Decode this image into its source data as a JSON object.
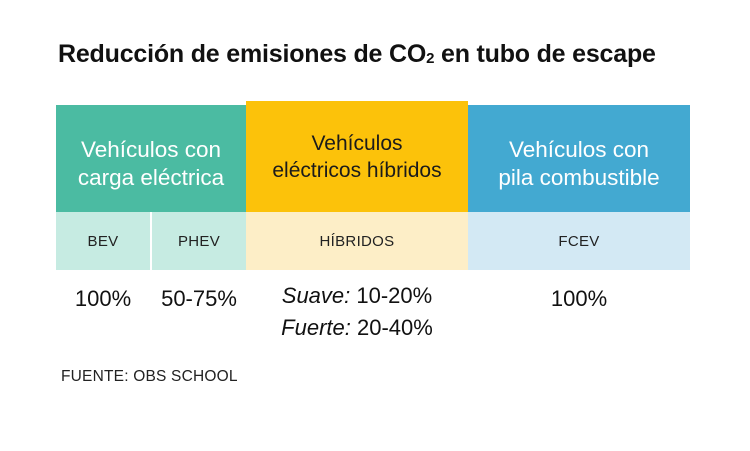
{
  "chart_data": {
    "type": "table",
    "title": {
      "main": "Reducción de emisiones de CO",
      "subscript": "2",
      "rest": " en tubo de escape"
    },
    "groups": [
      {
        "name": "Vehículos con carga eléctrica",
        "line1": "Vehículos con",
        "line2": "carga eléctrica",
        "color": "#4bbba2",
        "subcolor": "#c6ebe2",
        "columns": [
          {
            "label": "BEV",
            "value": "100%"
          },
          {
            "label": "PHEV",
            "value": "50-75%"
          }
        ]
      },
      {
        "name": "Vehículos eléctricos híbridos",
        "line1": "Vehículos",
        "line2": "eléctricos híbridos",
        "color": "#fcc20a",
        "subcolor": "#fdeec7",
        "columns": [
          {
            "label": "HÍBRIDOS",
            "values": [
              {
                "label": "Suave:",
                "value": " 10-20%"
              },
              {
                "label": "Fuerte:",
                "value": " 20-40%"
              }
            ]
          }
        ]
      },
      {
        "name": "Vehículos con pila combustible",
        "line1": "Vehículos con",
        "line2": "pila combustible",
        "color": "#43a9d1",
        "subcolor": "#d3e9f4",
        "columns": [
          {
            "label": "FCEV",
            "value": "100%"
          }
        ]
      }
    ],
    "source": "FUENTE: OBS SCHOOL"
  }
}
